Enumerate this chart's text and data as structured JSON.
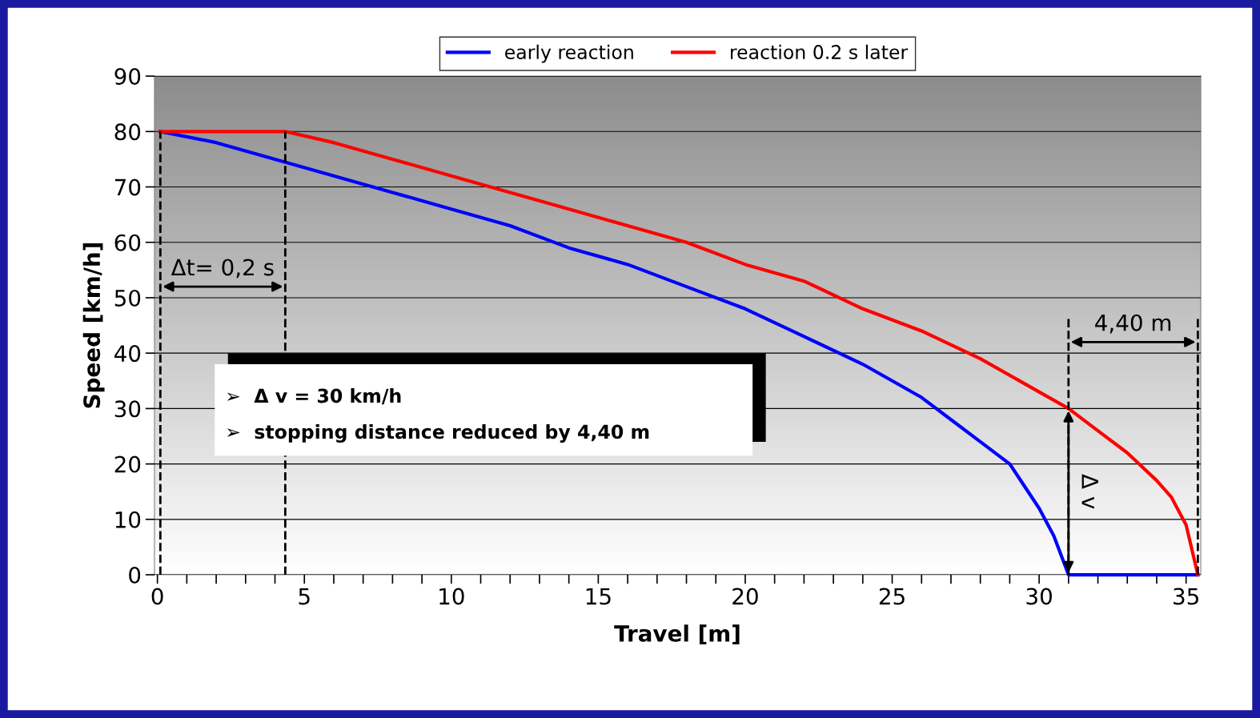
{
  "chart_data": {
    "type": "line",
    "xlabel": "Travel [m]",
    "ylabel": "Speed [km/h]",
    "xlim": [
      -0.1,
      35.5
    ],
    "ylim": [
      0,
      90
    ],
    "xticks": [
      0,
      {
        "value": 1,
        "label": null
      },
      {
        "value": 2,
        "label": null
      },
      {
        "value": 3,
        "label": null
      },
      {
        "value": 4,
        "label": null
      },
      5,
      {
        "value": 6,
        "label": null
      },
      {
        "value": 7,
        "label": null
      },
      {
        "value": 8,
        "label": null
      },
      {
        "value": 9,
        "label": null
      },
      10,
      {
        "value": 11,
        "label": null
      },
      {
        "value": 12,
        "label": null
      },
      {
        "value": 13,
        "label": null
      },
      {
        "value": 14,
        "label": null
      },
      15,
      {
        "value": 16,
        "label": null
      },
      {
        "value": 17,
        "label": null
      },
      {
        "value": 18,
        "label": null
      },
      {
        "value": 19,
        "label": null
      },
      20,
      {
        "value": 21,
        "label": null
      },
      {
        "value": 22,
        "label": null
      },
      {
        "value": 23,
        "label": null
      },
      {
        "value": 24,
        "label": null
      },
      25,
      {
        "value": 26,
        "label": null
      },
      {
        "value": 27,
        "label": null
      },
      {
        "value": 28,
        "label": null
      },
      {
        "value": 29,
        "label": null
      },
      30,
      {
        "value": 31,
        "label": null
      },
      {
        "value": 32,
        "label": null
      },
      {
        "value": 33,
        "label": null
      },
      {
        "value": 34,
        "label": null
      },
      35
    ],
    "yticks": [
      0,
      10,
      20,
      30,
      40,
      50,
      60,
      70,
      80,
      90
    ],
    "grid": "y",
    "legend": "top",
    "marker": "none",
    "line_style": "solid",
    "series": [
      {
        "name": "early reaction",
        "color": "#0000ff",
        "x": [
          0.1,
          2,
          4,
          6,
          8,
          10,
          12,
          14,
          16,
          18,
          20,
          22,
          24,
          26,
          27,
          28,
          29,
          30,
          30.5,
          31,
          35.4
        ],
        "values": [
          80,
          78,
          75,
          72,
          69,
          66,
          63,
          59,
          56,
          52,
          48,
          43,
          38,
          32,
          28,
          24,
          20,
          12,
          7,
          0,
          0
        ]
      },
      {
        "name": "reaction 0.2 s later",
        "color": "#ff0000",
        "x": [
          0.1,
          4.35,
          6,
          8,
          10,
          12,
          14,
          16,
          18,
          20,
          22,
          24,
          26,
          28,
          30,
          31,
          32,
          33,
          34,
          34.5,
          35,
          35.4
        ],
        "values": [
          80,
          80,
          78,
          75,
          72,
          69,
          66,
          63,
          60,
          56,
          53,
          48,
          44,
          39,
          33,
          30,
          26,
          22,
          17,
          14,
          9,
          0
        ]
      }
    ],
    "ref_lines": [
      {
        "axis": "x",
        "value": 0.1,
        "color": "#000000",
        "line_style": "dashed"
      },
      {
        "axis": "x",
        "value": 4.35,
        "color": "#000000",
        "line_style": "dashed"
      },
      {
        "axis": "x",
        "value": 31,
        "color": "#000000",
        "line_style": "dashed"
      },
      {
        "axis": "x",
        "value": 35.4,
        "color": "#000000",
        "line_style": "dashed"
      }
    ],
    "annotations": [
      "Δt= 0,2 s",
      "4,40 m",
      {
        "text": "Δ v",
        "x": 31,
        "y": 15
      },
      "➢  Δ v = 30 km/h",
      "➢  stopping distance reduced by 4,40 m"
    ]
  }
}
